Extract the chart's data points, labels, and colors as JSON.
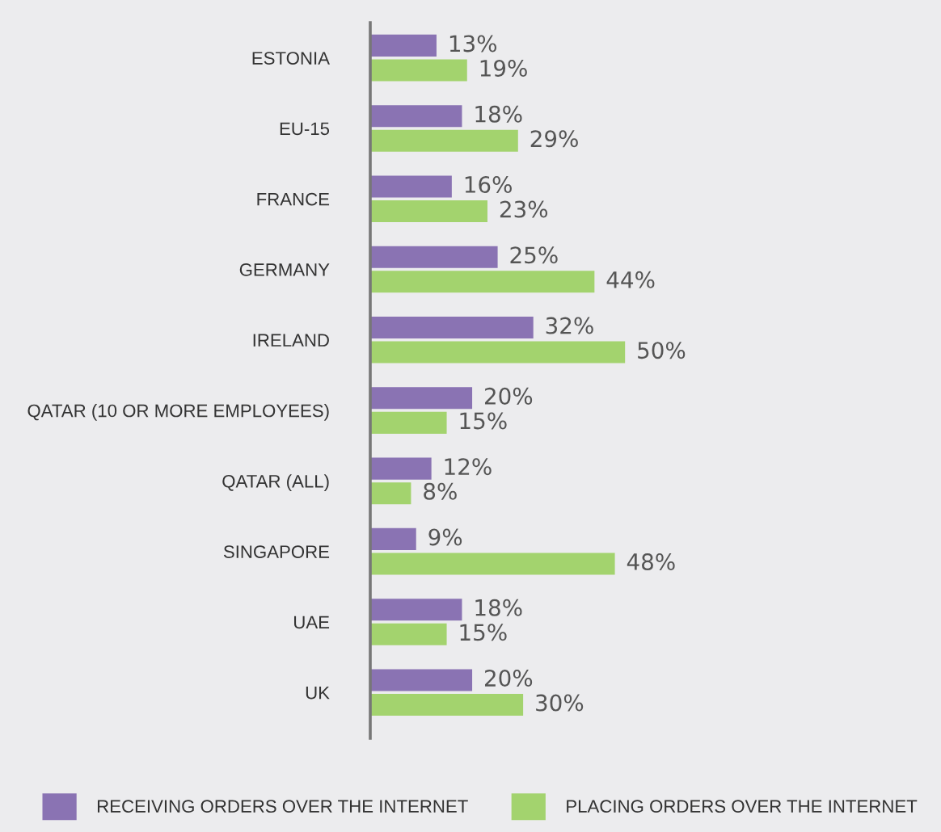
{
  "chart_data": {
    "type": "bar",
    "orientation": "horizontal",
    "categories": [
      "ESTONIA",
      "EU-15",
      "FRANCE",
      "GERMANY",
      "IRELAND",
      "QATAR (10 OR MORE EMPLOYEES)",
      "QATAR (ALL)",
      "SINGAPORE",
      "UAE",
      "UK"
    ],
    "series": [
      {
        "name": "RECEIVING ORDERS OVER THE INTERNET",
        "color": "#8a73b3",
        "values": [
          13,
          18,
          16,
          25,
          32,
          20,
          12,
          9,
          18,
          20
        ],
        "value_labels": [
          "13%",
          "18%",
          "16%",
          "25%",
          "32%",
          "20%",
          "12%",
          "9%",
          "18%",
          "20%"
        ]
      },
      {
        "name": "PLACING ORDERS OVER THE INTERNET",
        "color": "#a3d36e",
        "values": [
          19,
          29,
          23,
          44,
          50,
          15,
          8,
          48,
          15,
          30
        ],
        "value_labels": [
          "19%",
          "29%",
          "23%",
          "44%",
          "50%",
          "15%",
          "8%",
          "48%",
          "15%",
          "30%"
        ]
      }
    ],
    "xlim": [
      0,
      112
    ],
    "tick_labels": "y",
    "legend": "bottom"
  }
}
